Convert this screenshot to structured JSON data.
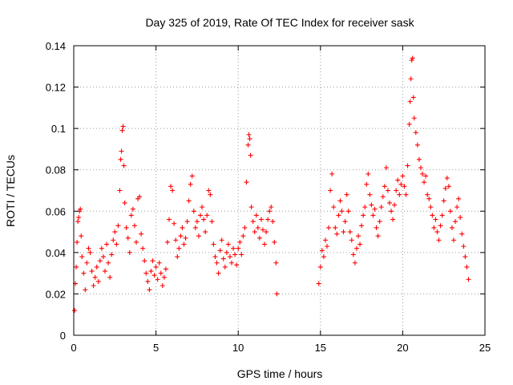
{
  "chart_data": {
    "type": "scatter",
    "title": "Day 325 of 2019, Rate Of TEC Index for receiver sask",
    "xlabel": "GPS time / hours",
    "ylabel": "ROTI / TECUs",
    "xlim": [
      0,
      25
    ],
    "ylim": [
      0,
      0.14
    ],
    "xticks": [
      0,
      5,
      10,
      15,
      20,
      25
    ],
    "yticks": [
      0,
      0.02,
      0.04,
      0.06,
      0.08,
      0.1,
      0.12,
      0.14
    ],
    "xtick_labels": [
      "0",
      "5",
      "10",
      "15",
      "20",
      "25"
    ],
    "ytick_labels": [
      "0",
      "0.02",
      "0.04",
      "0.06",
      "0.08",
      "0.1",
      "0.12",
      "0.14"
    ],
    "grid": true,
    "legend": "none",
    "marker": "plus",
    "color": "#ff0000",
    "series": [
      {
        "points": [
          [
            0.05,
            0.012
          ],
          [
            0.1,
            0.025
          ],
          [
            0.15,
            0.033
          ],
          [
            0.2,
            0.045
          ],
          [
            0.25,
            0.055
          ],
          [
            0.3,
            0.057
          ],
          [
            0.35,
            0.06
          ],
          [
            0.4,
            0.061
          ],
          [
            0.45,
            0.048
          ],
          [
            0.5,
            0.038
          ],
          [
            0.6,
            0.03
          ],
          [
            0.7,
            0.022
          ],
          [
            0.8,
            0.035
          ],
          [
            0.9,
            0.042
          ],
          [
            1.0,
            0.04
          ],
          [
            1.1,
            0.031
          ],
          [
            1.2,
            0.024
          ],
          [
            1.3,
            0.028
          ],
          [
            1.4,
            0.033
          ],
          [
            1.5,
            0.026
          ],
          [
            1.6,
            0.036
          ],
          [
            1.7,
            0.042
          ],
          [
            1.8,
            0.038
          ],
          [
            1.9,
            0.031
          ],
          [
            2.0,
            0.044
          ],
          [
            2.1,
            0.035
          ],
          [
            2.2,
            0.028
          ],
          [
            2.3,
            0.039
          ],
          [
            2.4,
            0.046
          ],
          [
            2.5,
            0.05
          ],
          [
            2.6,
            0.044
          ],
          [
            2.7,
            0.053
          ],
          [
            2.8,
            0.07
          ],
          [
            2.85,
            0.085
          ],
          [
            2.9,
            0.089
          ],
          [
            2.95,
            0.099
          ],
          [
            3.0,
            0.101
          ],
          [
            3.05,
            0.082
          ],
          [
            3.1,
            0.064
          ],
          [
            3.2,
            0.052
          ],
          [
            3.3,
            0.047
          ],
          [
            3.4,
            0.04
          ],
          [
            3.5,
            0.058
          ],
          [
            3.6,
            0.061
          ],
          [
            3.7,
            0.053
          ],
          [
            3.8,
            0.045
          ],
          [
            3.9,
            0.066
          ],
          [
            4.0,
            0.067
          ],
          [
            4.1,
            0.049
          ],
          [
            4.2,
            0.042
          ],
          [
            4.3,
            0.036
          ],
          [
            4.4,
            0.03
          ],
          [
            4.5,
            0.026
          ],
          [
            4.6,
            0.022
          ],
          [
            4.7,
            0.031
          ],
          [
            4.8,
            0.036
          ],
          [
            4.9,
            0.029
          ],
          [
            5.0,
            0.033
          ],
          [
            5.1,
            0.027
          ],
          [
            5.2,
            0.035
          ],
          [
            5.3,
            0.03
          ],
          [
            5.4,
            0.024
          ],
          [
            5.5,
            0.028
          ],
          [
            5.6,
            0.032
          ],
          [
            5.7,
            0.045
          ],
          [
            5.8,
            0.056
          ],
          [
            5.9,
            0.072
          ],
          [
            6.0,
            0.07
          ],
          [
            6.1,
            0.054
          ],
          [
            6.2,
            0.046
          ],
          [
            6.3,
            0.038
          ],
          [
            6.4,
            0.042
          ],
          [
            6.5,
            0.048
          ],
          [
            6.6,
            0.052
          ],
          [
            6.7,
            0.044
          ],
          [
            6.8,
            0.047
          ],
          [
            6.9,
            0.055
          ],
          [
            7.0,
            0.065
          ],
          [
            7.1,
            0.073
          ],
          [
            7.2,
            0.077
          ],
          [
            7.3,
            0.06
          ],
          [
            7.4,
            0.052
          ],
          [
            7.5,
            0.055
          ],
          [
            7.6,
            0.048
          ],
          [
            7.7,
            0.058
          ],
          [
            7.8,
            0.062
          ],
          [
            7.9,
            0.056
          ],
          [
            8.0,
            0.05
          ],
          [
            8.1,
            0.058
          ],
          [
            8.2,
            0.07
          ],
          [
            8.3,
            0.068
          ],
          [
            8.4,
            0.055
          ],
          [
            8.5,
            0.044
          ],
          [
            8.6,
            0.038
          ],
          [
            8.7,
            0.035
          ],
          [
            8.8,
            0.03
          ],
          [
            8.9,
            0.041
          ],
          [
            9.0,
            0.046
          ],
          [
            9.1,
            0.037
          ],
          [
            9.2,
            0.033
          ],
          [
            9.3,
            0.04
          ],
          [
            9.4,
            0.044
          ],
          [
            9.5,
            0.038
          ],
          [
            9.6,
            0.035
          ],
          [
            9.7,
            0.042
          ],
          [
            9.8,
            0.039
          ],
          [
            9.9,
            0.034
          ],
          [
            10.0,
            0.042
          ],
          [
            10.1,
            0.045
          ],
          [
            10.2,
            0.039
          ],
          [
            10.3,
            0.048
          ],
          [
            10.4,
            0.052
          ],
          [
            10.5,
            0.074
          ],
          [
            10.6,
            0.092
          ],
          [
            10.65,
            0.097
          ],
          [
            10.7,
            0.095
          ],
          [
            10.75,
            0.087
          ],
          [
            10.8,
            0.062
          ],
          [
            10.9,
            0.055
          ],
          [
            11.0,
            0.05
          ],
          [
            11.1,
            0.058
          ],
          [
            11.2,
            0.052
          ],
          [
            11.3,
            0.047
          ],
          [
            11.4,
            0.056
          ],
          [
            11.5,
            0.051
          ],
          [
            11.6,
            0.044
          ],
          [
            11.7,
            0.05
          ],
          [
            11.8,
            0.056
          ],
          [
            11.9,
            0.06
          ],
          [
            12.0,
            0.062
          ],
          [
            12.1,
            0.055
          ],
          [
            12.2,
            0.045
          ],
          [
            12.3,
            0.035
          ],
          [
            12.35,
            0.02
          ],
          [
            14.9,
            0.025
          ],
          [
            15.0,
            0.033
          ],
          [
            15.1,
            0.041
          ],
          [
            15.2,
            0.038
          ],
          [
            15.3,
            0.046
          ],
          [
            15.4,
            0.043
          ],
          [
            15.5,
            0.052
          ],
          [
            15.6,
            0.07
          ],
          [
            15.7,
            0.078
          ],
          [
            15.8,
            0.062
          ],
          [
            15.9,
            0.052
          ],
          [
            16.0,
            0.049
          ],
          [
            16.1,
            0.058
          ],
          [
            16.2,
            0.065
          ],
          [
            16.3,
            0.06
          ],
          [
            16.4,
            0.05
          ],
          [
            16.5,
            0.055
          ],
          [
            16.6,
            0.068
          ],
          [
            16.7,
            0.06
          ],
          [
            16.8,
            0.05
          ],
          [
            16.9,
            0.046
          ],
          [
            17.0,
            0.039
          ],
          [
            17.1,
            0.035
          ],
          [
            17.2,
            0.042
          ],
          [
            17.3,
            0.048
          ],
          [
            17.4,
            0.044
          ],
          [
            17.5,
            0.053
          ],
          [
            17.6,
            0.058
          ],
          [
            17.7,
            0.062
          ],
          [
            17.8,
            0.073
          ],
          [
            17.9,
            0.078
          ],
          [
            18.0,
            0.068
          ],
          [
            18.1,
            0.063
          ],
          [
            18.2,
            0.058
          ],
          [
            18.3,
            0.061
          ],
          [
            18.4,
            0.052
          ],
          [
            18.5,
            0.048
          ],
          [
            18.6,
            0.055
          ],
          [
            18.7,
            0.062
          ],
          [
            18.8,
            0.067
          ],
          [
            18.9,
            0.072
          ],
          [
            19.0,
            0.081
          ],
          [
            19.1,
            0.07
          ],
          [
            19.2,
            0.064
          ],
          [
            19.3,
            0.06
          ],
          [
            19.4,
            0.056
          ],
          [
            19.5,
            0.063
          ],
          [
            19.6,
            0.07
          ],
          [
            19.7,
            0.075
          ],
          [
            19.8,
            0.068
          ],
          [
            19.9,
            0.073
          ],
          [
            20.0,
            0.077
          ],
          [
            20.1,
            0.072
          ],
          [
            20.2,
            0.068
          ],
          [
            20.3,
            0.082
          ],
          [
            20.4,
            0.102
          ],
          [
            20.45,
            0.113
          ],
          [
            20.5,
            0.124
          ],
          [
            20.55,
            0.133
          ],
          [
            20.6,
            0.134
          ],
          [
            20.65,
            0.115
          ],
          [
            20.7,
            0.105
          ],
          [
            20.8,
            0.098
          ],
          [
            20.9,
            0.092
          ],
          [
            21.0,
            0.085
          ],
          [
            21.1,
            0.081
          ],
          [
            21.2,
            0.078
          ],
          [
            21.3,
            0.074
          ],
          [
            21.4,
            0.077
          ],
          [
            21.5,
            0.068
          ],
          [
            21.6,
            0.066
          ],
          [
            21.7,
            0.062
          ],
          [
            21.8,
            0.058
          ],
          [
            21.9,
            0.052
          ],
          [
            22.0,
            0.056
          ],
          [
            22.1,
            0.05
          ],
          [
            22.2,
            0.046
          ],
          [
            22.3,
            0.053
          ],
          [
            22.4,
            0.058
          ],
          [
            22.5,
            0.065
          ],
          [
            22.6,
            0.071
          ],
          [
            22.7,
            0.076
          ],
          [
            22.8,
            0.072
          ],
          [
            22.9,
            0.06
          ],
          [
            23.0,
            0.052
          ],
          [
            23.1,
            0.046
          ],
          [
            23.2,
            0.055
          ],
          [
            23.3,
            0.062
          ],
          [
            23.4,
            0.066
          ],
          [
            23.5,
            0.057
          ],
          [
            23.6,
            0.049
          ],
          [
            23.7,
            0.043
          ],
          [
            23.8,
            0.038
          ],
          [
            23.9,
            0.033
          ],
          [
            24.0,
            0.027
          ]
        ]
      }
    ]
  }
}
